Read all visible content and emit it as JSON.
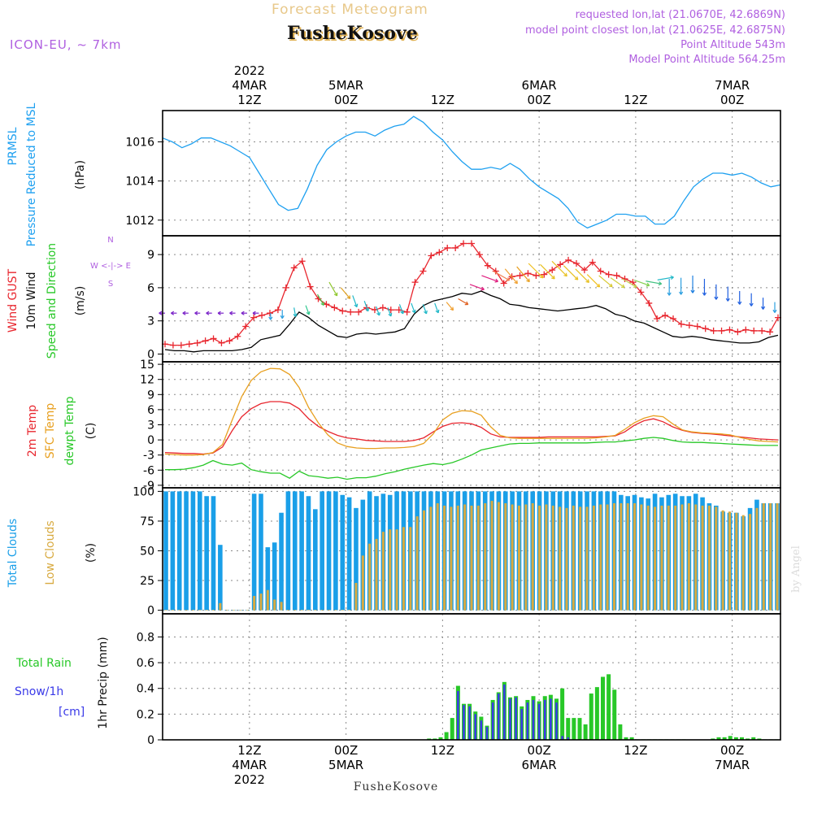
{
  "header": {
    "product": "Forecast Meteogram",
    "location": "FusheKosove",
    "model": "ICON-EU, ~ 7km",
    "requested": "requested lon,lat (21.0670E, 42.6869N)",
    "closest": "model point closest lon,lat (21.0625E, 42.6875N)",
    "point_alt": "Point Altitude 543m",
    "model_alt": "Model Point Altitude 564.25m",
    "footer_location": "FusheKosove",
    "credit": "by Angel"
  },
  "time_axis": {
    "start_hour": 0,
    "end_hour": 64,
    "top_year": "2022",
    "bottom_year": "2022",
    "ticks": [
      {
        "hour": 9,
        "label1": "4MAR",
        "label2": "12Z"
      },
      {
        "hour": 19,
        "label1": "5MAR",
        "label2": "00Z"
      },
      {
        "hour": 29,
        "label1": "",
        "label2": "12Z"
      },
      {
        "hour": 39,
        "label1": "6MAR",
        "label2": "00Z"
      },
      {
        "hour": 49,
        "label1": "",
        "label2": "12Z"
      },
      {
        "hour": 59,
        "label1": "7MAR",
        "label2": "00Z"
      }
    ]
  },
  "chart_data": [
    {
      "type": "line",
      "id": "pressure",
      "ylabels": [
        "PRMSL",
        "Pressure Reduced to MSL",
        "(hPa)"
      ],
      "ylim": [
        1011.2,
        1017.6
      ],
      "yticks": [
        1012,
        1014,
        1016
      ],
      "series": [
        {
          "name": "PRMSL",
          "color": "#1ea0f0",
          "x": [
            0,
            1,
            2,
            3,
            4,
            5,
            6,
            7,
            8,
            9,
            10,
            11,
            12,
            13,
            14,
            15,
            16,
            17,
            18,
            19,
            20,
            21,
            22,
            23,
            24,
            25,
            26,
            27,
            28,
            29,
            30,
            31,
            32,
            33,
            34,
            35,
            36,
            37,
            38,
            39,
            40,
            41,
            42,
            43,
            44,
            45,
            46,
            47,
            48,
            49,
            50,
            51,
            52,
            53,
            54,
            55,
            56,
            57,
            58,
            59,
            60,
            61,
            62,
            63,
            64
          ],
          "values": [
            1016.2,
            1016.0,
            1015.7,
            1015.9,
            1016.2,
            1016.2,
            1016.0,
            1015.8,
            1015.5,
            1015.2,
            1014.4,
            1013.6,
            1012.8,
            1012.5,
            1012.6,
            1013.6,
            1014.8,
            1015.6,
            1016.0,
            1016.3,
            1016.5,
            1016.5,
            1016.3,
            1016.6,
            1016.8,
            1016.9,
            1017.3,
            1017.0,
            1016.5,
            1016.1,
            1015.5,
            1015.0,
            1014.6,
            1014.6,
            1014.7,
            1014.6,
            1014.9,
            1014.6,
            1014.1,
            1013.7,
            1013.4,
            1013.1,
            1012.6,
            1011.9,
            1011.6,
            1011.8,
            1012.0,
            1012.3,
            1012.3,
            1012.2,
            1012.2,
            1011.8,
            1011.8,
            1012.2,
            1013.0,
            1013.7,
            1014.1,
            1014.4,
            1014.4,
            1014.3,
            1014.4,
            1014.2,
            1013.9,
            1013.7,
            1013.8
          ]
        }
      ]
    },
    {
      "type": "line",
      "id": "wind",
      "ylabels": [
        "Wind GUST",
        "10m Wind",
        "Speed and Direction",
        "(m/s)"
      ],
      "compass": [
        "N",
        "W <-|-> E",
        "S"
      ],
      "ylim": [
        -0.7,
        10.7
      ],
      "yticks": [
        0,
        3,
        6,
        9
      ],
      "series": [
        {
          "name": "Wind GUST",
          "color": "#e8262e",
          "marker": "plus",
          "values": [
            0.9,
            0.8,
            0.8,
            0.9,
            1.0,
            1.2,
            1.4,
            1.0,
            1.2,
            1.6,
            2.5,
            3.3,
            3.5,
            3.7,
            4.0,
            6.0,
            7.8,
            8.4,
            6.1,
            5.0,
            4.5,
            4.2,
            3.9,
            3.8,
            3.8,
            4.2,
            4.0,
            4.2,
            4.0,
            4.0,
            3.8,
            6.5,
            7.5,
            8.9,
            9.2,
            9.6,
            9.6,
            10.0,
            10.0,
            9.0,
            8.0,
            7.5,
            6.4,
            7.0,
            7.1,
            7.3,
            7.1,
            7.2,
            7.6,
            8.1,
            8.5,
            8.2,
            7.6,
            8.3,
            7.5,
            7.2,
            7.1,
            6.8,
            6.5,
            5.6,
            4.6,
            3.2,
            3.5,
            3.2,
            2.7,
            2.6,
            2.5,
            2.3,
            2.1,
            2.1,
            2.2,
            2.0,
            2.2,
            2.1,
            2.1,
            2.0,
            3.3
          ]
        },
        {
          "name": "10m Wind",
          "color": "#000000",
          "values": [
            0.4,
            0.3,
            0.3,
            0.2,
            0.3,
            0.3,
            0.3,
            0.3,
            0.4,
            0.6,
            1.3,
            1.5,
            1.7,
            2.7,
            3.8,
            3.3,
            2.6,
            2.1,
            1.6,
            1.5,
            1.8,
            1.9,
            1.8,
            1.9,
            2.0,
            2.3,
            3.6,
            4.4,
            4.8,
            5.0,
            5.2,
            5.5,
            5.4,
            5.7,
            5.3,
            5.0,
            4.5,
            4.4,
            4.2,
            4.1,
            4.0,
            3.9,
            4.0,
            4.1,
            4.2,
            4.4,
            4.1,
            3.6,
            3.4,
            3.0,
            2.8,
            2.4,
            2.0,
            1.6,
            1.5,
            1.6,
            1.5,
            1.3,
            1.2,
            1.1,
            1.0,
            1.0,
            1.1,
            1.5,
            1.7
          ]
        }
      ],
      "vectors": {
        "hours_start": 0,
        "hours_step": 1,
        "colors": [
          "#7a22c8",
          "#7a22c8",
          "#7a22c8",
          "#7a22c8",
          "#7a22c8",
          "#7a22c8",
          "#7a22c8",
          "#7a22c8",
          "#7a22c8",
          "#2c9fe0",
          "#2c9fe0",
          "#20b8c8",
          "#30c890",
          "#50c050",
          "#90c830",
          "#e0a020",
          "#20b8c8",
          "#20b8c8",
          "#20b8c8",
          "#20b8c8",
          "#20b8c8",
          "#20b8c8",
          "#20b8c8",
          "#20b8c8",
          "#f0a030",
          "#e06020",
          "#e02080",
          "#e02080",
          "#f08050",
          "#f0a030",
          "#e8a020",
          "#f0c020",
          "#e8c020",
          "#e8c020",
          "#e8c020",
          "#e8c020",
          "#f0c020",
          "#d8c830",
          "#d0d040",
          "#c0d050",
          "#80d050",
          "#40c080",
          "#20b8c8",
          "#2c9fe0",
          "#2c9fe0",
          "#2080e0",
          "#2060e0",
          "#2060e0",
          "#2060e0",
          "#2060e0",
          "#2060e0",
          "#2060e0",
          "#2c9fe0"
        ],
        "dirs": [
          -90,
          -90,
          -90,
          -90,
          -90,
          -90,
          -90,
          -90,
          -90,
          0,
          0,
          10,
          20,
          30,
          30,
          40,
          20,
          20,
          20,
          20,
          20,
          20,
          20,
          20,
          40,
          60,
          70,
          70,
          60,
          40,
          40,
          45,
          45,
          45,
          45,
          45,
          45,
          50,
          55,
          60,
          70,
          80,
          100,
          0,
          0,
          0,
          0,
          0,
          0,
          0,
          0,
          0,
          0
        ]
      }
    },
    {
      "type": "line",
      "id": "temperature",
      "ylabels": [
        "2m Temp",
        "SFC Temp",
        "dewpt Temp",
        "(C)"
      ],
      "ylim": [
        -9.5,
        15.5
      ],
      "yticks": [
        -9,
        -6,
        -3,
        0,
        3,
        6,
        9,
        12,
        15
      ],
      "series": [
        {
          "name": "2m Temp",
          "color": "#e8262e",
          "values": [
            -2.5,
            -2.6,
            -2.7,
            -2.7,
            -2.8,
            -2.6,
            -1.4,
            1.8,
            4.6,
            6.2,
            7.2,
            7.6,
            7.6,
            7.3,
            6.2,
            4.2,
            2.7,
            1.7,
            0.9,
            0.4,
            0.2,
            -0.1,
            -0.2,
            -0.3,
            -0.3,
            -0.3,
            -0.1,
            0.4,
            1.6,
            2.7,
            3.3,
            3.4,
            3.2,
            2.5,
            1.2,
            0.6,
            0.5,
            0.5,
            0.5,
            0.5,
            0.6,
            0.6,
            0.6,
            0.6,
            0.6,
            0.6,
            0.7,
            0.8,
            1.6,
            2.9,
            3.8,
            4.2,
            3.6,
            2.6,
            1.9,
            1.5,
            1.3,
            1.2,
            1.0,
            0.8,
            0.6,
            0.4,
            0.2,
            0.1,
            0.0
          ]
        },
        {
          "name": "SFC Temp",
          "color": "#e8a020",
          "values": [
            -2.8,
            -2.9,
            -3.0,
            -3.0,
            -2.9,
            -2.5,
            -0.9,
            3.9,
            8.6,
            11.8,
            13.5,
            14.2,
            14.1,
            13.0,
            10.4,
            6.4,
            3.4,
            1.0,
            -0.6,
            -1.3,
            -1.6,
            -1.7,
            -1.7,
            -1.6,
            -1.6,
            -1.5,
            -1.3,
            -0.7,
            1.2,
            4.0,
            5.3,
            5.8,
            5.7,
            4.9,
            2.6,
            0.9,
            0.4,
            0.3,
            0.3,
            0.3,
            0.3,
            0.3,
            0.3,
            0.3,
            0.3,
            0.4,
            0.6,
            0.9,
            2.1,
            3.4,
            4.3,
            4.8,
            4.6,
            3.2,
            2.0,
            1.6,
            1.4,
            1.3,
            1.2,
            1.0,
            0.5,
            0.1,
            -0.2,
            -0.3,
            -0.4
          ]
        },
        {
          "name": "dewpt Temp",
          "color": "#28c828",
          "values": [
            -5.9,
            -5.9,
            -5.8,
            -5.5,
            -5.0,
            -4.1,
            -4.8,
            -5.0,
            -4.6,
            -5.9,
            -6.3,
            -6.6,
            -6.6,
            -7.6,
            -6.2,
            -7.1,
            -7.3,
            -7.6,
            -7.4,
            -7.8,
            -7.5,
            -7.5,
            -7.2,
            -6.7,
            -6.3,
            -5.8,
            -5.4,
            -5.0,
            -4.7,
            -4.9,
            -4.5,
            -3.8,
            -3.0,
            -2.0,
            -1.6,
            -1.2,
            -0.8,
            -0.7,
            -0.7,
            -0.6,
            -0.6,
            -0.6,
            -0.6,
            -0.6,
            -0.6,
            -0.5,
            -0.4,
            -0.4,
            -0.2,
            0.0,
            0.3,
            0.5,
            0.3,
            -0.1,
            -0.4,
            -0.5,
            -0.5,
            -0.6,
            -0.7,
            -0.8,
            -0.9,
            -1.0,
            -1.1,
            -1.1,
            -1.1
          ]
        }
      ]
    },
    {
      "type": "bar",
      "id": "clouds",
      "ylabels": [
        "Total Clouds",
        "Low Clouds",
        "(%)"
      ],
      "ylim": [
        -3,
        103
      ],
      "yticks": [
        0,
        25,
        50,
        75,
        100
      ],
      "series": [
        {
          "name": "Total Clouds",
          "color": "#1a9fe8",
          "values": [
            100,
            100,
            100,
            100,
            100,
            100,
            96,
            96,
            55,
            0,
            0,
            0,
            0,
            98,
            98,
            53,
            57,
            82,
            100,
            100,
            100,
            96,
            85,
            100,
            100,
            100,
            97,
            95,
            86,
            93,
            100,
            96,
            98,
            97,
            100,
            100,
            100,
            100,
            100,
            100,
            100,
            100,
            100,
            100,
            100,
            100,
            100,
            100,
            100,
            100,
            100,
            100,
            100,
            100,
            100,
            100,
            100,
            100,
            100,
            100,
            100,
            100,
            100,
            100,
            100,
            100,
            100,
            97,
            96,
            97,
            95,
            94,
            98,
            95,
            97,
            98,
            96,
            96,
            98,
            95,
            90,
            88,
            83,
            82,
            82,
            79,
            86,
            93,
            90,
            90,
            90
          ]
        },
        {
          "name": "Low Clouds",
          "color": "#d8aa40",
          "values": [
            0,
            0,
            0,
            0,
            0,
            0,
            0,
            0,
            6,
            0,
            0,
            0,
            0,
            12,
            14,
            17,
            9,
            7,
            0,
            0,
            0,
            0,
            0,
            0,
            0,
            0,
            0,
            0,
            23,
            46,
            56,
            60,
            66,
            68,
            68,
            70,
            70,
            79,
            84,
            87,
            90,
            88,
            87,
            88,
            89,
            88,
            88,
            90,
            92,
            91,
            90,
            89,
            88,
            89,
            90,
            88,
            89,
            88,
            87,
            86,
            88,
            87,
            87,
            88,
            89,
            89,
            90,
            90,
            90,
            90,
            89,
            88,
            87,
            88,
            88,
            88,
            89,
            90,
            89,
            88,
            88,
            87,
            84,
            83,
            82,
            80,
            81,
            86,
            90,
            90,
            90
          ]
        }
      ]
    },
    {
      "type": "bar",
      "id": "precip",
      "ylabels": [
        "Total  Rain",
        "Snow/1h",
        "[cm]",
        "1hr Precip (mm)"
      ],
      "ylim": [
        0,
        0.98
      ],
      "yticks": [
        0,
        0.2,
        0.4,
        0.6,
        0.8
      ],
      "ytick_labels": [
        "0",
        "0.2",
        "0.4",
        "0.6",
        "0.8"
      ],
      "series": [
        {
          "name": "Total Rain",
          "color": "#28c828",
          "hours": [
            27.6,
            28.2,
            28.8,
            29.4,
            30.0,
            30.6,
            31.2,
            31.8,
            32.4,
            33.0,
            33.6,
            34.2,
            34.8,
            35.4,
            36.0,
            36.6,
            37.2,
            37.8,
            38.4,
            39.0,
            39.6,
            40.2,
            40.8,
            41.4,
            42.0,
            42.6,
            43.2,
            43.8,
            44.4,
            45.0,
            45.6,
            46.2,
            46.8,
            47.4,
            48.0,
            48.6,
            49.2,
            49.8,
            50.4,
            51.0,
            51.6,
            52.2,
            52.8,
            53.4,
            54.0,
            57.0,
            57.6,
            58.2,
            58.8,
            59.4,
            60.0,
            60.6,
            61.2,
            61.8,
            62.4,
            63.0,
            63.6
          ],
          "values": [
            0.01,
            0.01,
            0.02,
            0.06,
            0.17,
            0.42,
            0.28,
            0.28,
            0.22,
            0.18,
            0.11,
            0.31,
            0.37,
            0.45,
            0.33,
            0.34,
            0.26,
            0.31,
            0.34,
            0.3,
            0.34,
            0.35,
            0.32,
            0.4,
            0.17,
            0.17,
            0.17,
            0.12,
            0.36,
            0.41,
            0.49,
            0.51,
            0.39,
            0.12,
            0.02,
            0.02,
            0.0,
            0.0,
            0.0,
            0.0,
            0.0,
            0.0,
            0.0,
            0.0,
            0.0,
            0.01,
            0.02,
            0.02,
            0.03,
            0.02,
            0.02,
            0.01,
            0.02,
            0.01,
            0.0,
            0.0,
            0.0
          ]
        },
        {
          "name": "Snow/1h",
          "color": "#3a3ae8",
          "hours": [
            30.6,
            31.2,
            31.8,
            32.4,
            33.0,
            33.6,
            34.2,
            34.8,
            35.4,
            36.0,
            36.6,
            37.2,
            37.8,
            38.4,
            39.0,
            39.6,
            40.2,
            40.8,
            41.4,
            42.0
          ],
          "values": [
            0.38,
            0.27,
            0.26,
            0.2,
            0.15,
            0.1,
            0.29,
            0.36,
            0.43,
            0.32,
            0.33,
            0.24,
            0.29,
            0.31,
            0.28,
            0.31,
            0.32,
            0.29,
            0.03,
            0.02
          ]
        }
      ]
    }
  ]
}
